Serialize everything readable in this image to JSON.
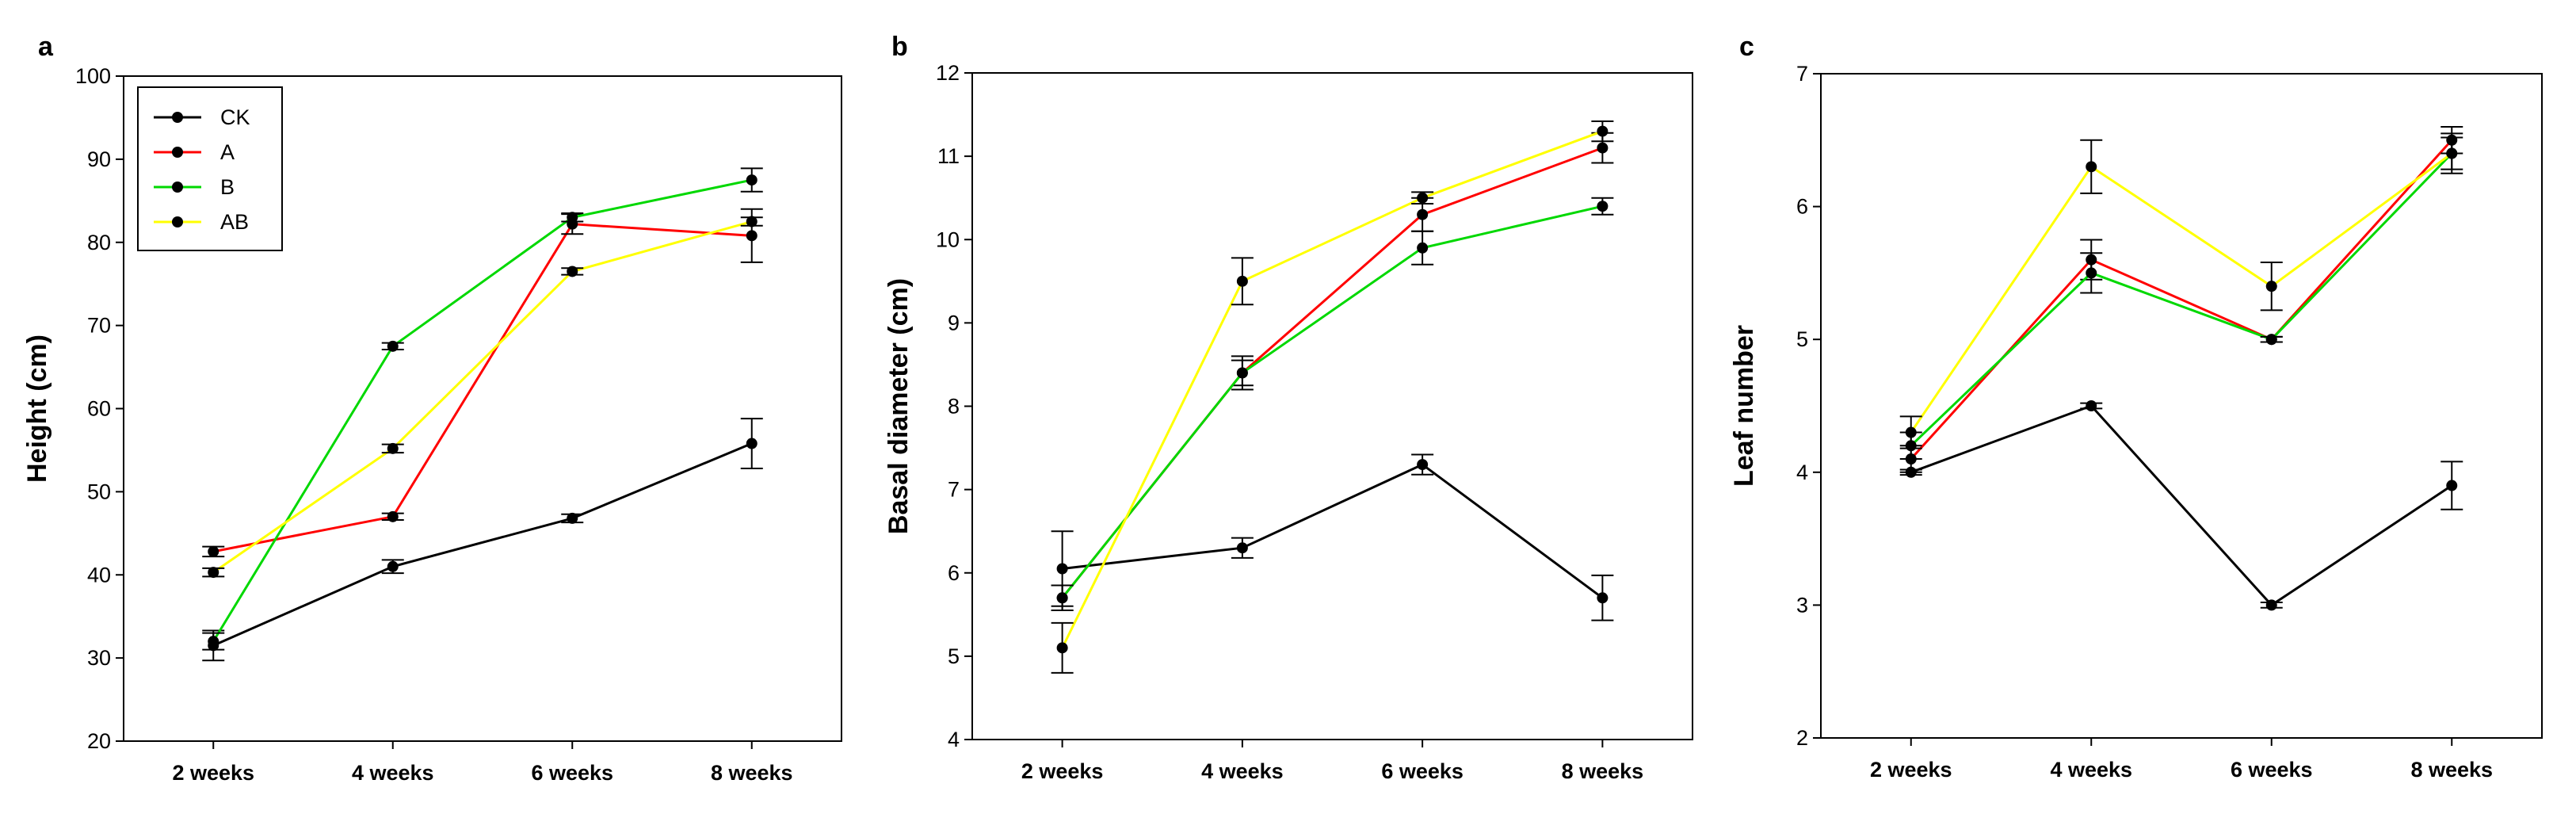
{
  "colors": {
    "CK": "#000000",
    "A": "#ff0000",
    "B": "#00d800",
    "AB": "#ffff00"
  },
  "legend": {
    "items": [
      "CK",
      "A",
      "B",
      "AB"
    ],
    "position": "top-left"
  },
  "chart_data": [
    {
      "panel": "a",
      "type": "line",
      "ylabel": "Height (cm)",
      "xlabel": "",
      "categories": [
        "2 weeks",
        "4 weeks",
        "6 weeks",
        "8 weeks"
      ],
      "ylim": [
        20,
        100
      ],
      "yticks": [
        20,
        30,
        40,
        50,
        60,
        70,
        80,
        90,
        100
      ],
      "ytick_labels": [
        "20",
        "30",
        "40",
        "50",
        "60",
        "70",
        "80",
        "90",
        "100"
      ],
      "series": [
        {
          "name": "CK",
          "values": [
            31.5,
            41.0,
            46.8,
            55.8
          ],
          "errors": [
            1.8,
            0.8,
            0.5,
            3.0
          ]
        },
        {
          "name": "A",
          "values": [
            42.8,
            47.0,
            82.2,
            80.8
          ],
          "errors": [
            0.6,
            0.4,
            1.2,
            3.2
          ]
        },
        {
          "name": "B",
          "values": [
            32.0,
            67.5,
            83.0,
            87.5
          ],
          "errors": [
            1.0,
            0.4,
            0.5,
            1.4
          ]
        },
        {
          "name": "AB",
          "values": [
            40.3,
            55.2,
            76.5,
            82.5
          ],
          "errors": [
            0.5,
            0.5,
            0.4,
            0.5
          ]
        }
      ]
    },
    {
      "panel": "b",
      "type": "line",
      "ylabel": "Basal diameter (cm)",
      "xlabel": "",
      "categories": [
        "2 weeks",
        "4 weeks",
        "6 weeks",
        "8 weeks"
      ],
      "ylim": [
        4,
        12
      ],
      "yticks": [
        4,
        5,
        6,
        7,
        8,
        9,
        10,
        11,
        12
      ],
      "ytick_labels": [
        "4",
        "5",
        "6",
        "7",
        "8",
        "9",
        "10",
        "11",
        "12"
      ],
      "series": [
        {
          "name": "CK",
          "values": [
            6.05,
            6.3,
            7.3,
            5.7
          ],
          "errors": [
            0.45,
            0.12,
            0.12,
            0.27
          ]
        },
        {
          "name": "A",
          "values": [
            5.7,
            8.4,
            10.3,
            11.1
          ],
          "errors": [
            0.15,
            0.15,
            0.2,
            0.18
          ]
        },
        {
          "name": "B",
          "values": [
            5.7,
            8.4,
            9.9,
            10.4
          ],
          "errors": [
            0.15,
            0.2,
            0.2,
            0.1
          ]
        },
        {
          "name": "AB",
          "values": [
            5.1,
            9.5,
            10.5,
            11.3
          ],
          "errors": [
            0.3,
            0.28,
            0.07,
            0.12
          ]
        }
      ]
    },
    {
      "panel": "c",
      "type": "line",
      "ylabel": "Leaf number",
      "xlabel": "",
      "categories": [
        "2 weeks",
        "4 weeks",
        "6 weeks",
        "8 weeks"
      ],
      "ylim": [
        2,
        7
      ],
      "yticks": [
        2,
        3,
        4,
        5,
        6,
        7
      ],
      "ytick_labels": [
        "2",
        "3",
        "4",
        "5",
        "6",
        "7"
      ],
      "series": [
        {
          "name": "CK",
          "values": [
            4.0,
            4.5,
            3.0,
            3.9
          ],
          "errors": [
            0.02,
            0.02,
            0.02,
            0.18
          ]
        },
        {
          "name": "A",
          "values": [
            4.1,
            5.6,
            5.0,
            6.5
          ],
          "errors": [
            0.1,
            0.15,
            0.02,
            0.1
          ]
        },
        {
          "name": "B",
          "values": [
            4.2,
            5.5,
            5.0,
            6.4
          ],
          "errors": [
            0.1,
            0.15,
            0.02,
            0.12
          ]
        },
        {
          "name": "AB",
          "values": [
            4.3,
            6.3,
            5.4,
            6.4
          ],
          "errors": [
            0.12,
            0.2,
            0.18,
            0.15
          ]
        }
      ]
    }
  ]
}
